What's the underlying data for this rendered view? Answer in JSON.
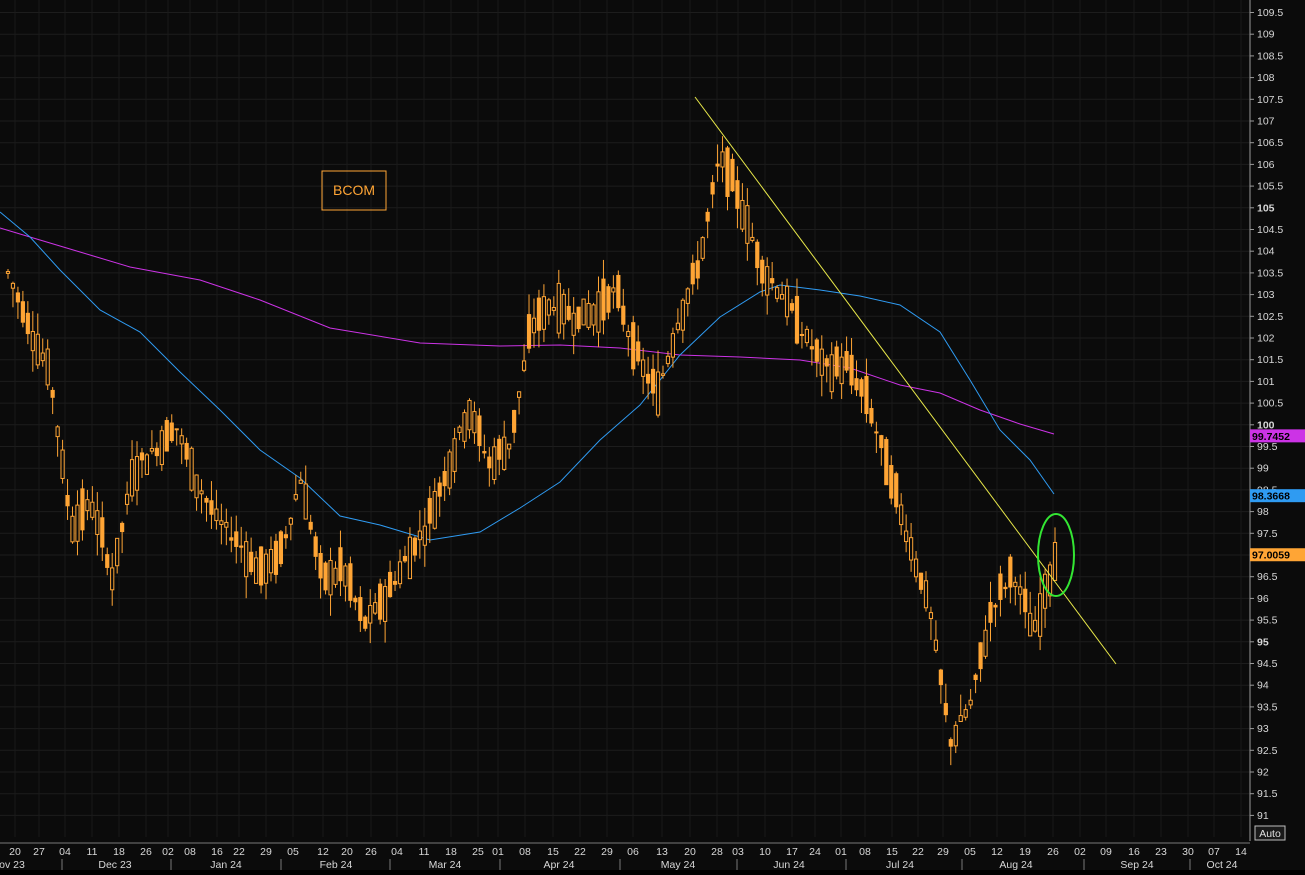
{
  "chart_data": {
    "type": "candlestick",
    "title": "BCOM",
    "ylim": [
      90.75,
      109.75
    ],
    "y_tick_labels": [
      "91",
      "91.5",
      "92",
      "92.5",
      "93",
      "93.5",
      "94",
      "94.5",
      "95",
      "95.5",
      "96",
      "96.5",
      "97",
      "97.5",
      "98",
      "98.5",
      "99",
      "99.5",
      "100",
      "100.5",
      "101",
      "101.5",
      "102",
      "102.5",
      "103",
      "103.5",
      "104",
      "104.5",
      "105",
      "105.5",
      "106",
      "106.5",
      "107",
      "107.5",
      "108",
      "108.5",
      "109",
      "109.5"
    ],
    "y_bold_ticks": [
      "95",
      "100",
      "105"
    ],
    "x_day_labels": [
      "20",
      "27",
      "04",
      "11",
      "18",
      "26",
      "02",
      "08",
      "16",
      "22",
      "29",
      "05",
      "12",
      "20",
      "26",
      "04",
      "11",
      "18",
      "25",
      "01",
      "08",
      "15",
      "22",
      "29",
      "06",
      "13",
      "20",
      "28",
      "03",
      "10",
      "17",
      "24",
      "01",
      "08",
      "15",
      "22",
      "29",
      "05",
      "12",
      "19",
      "26",
      "02",
      "09",
      "16",
      "23",
      "30",
      "07",
      "14"
    ],
    "x_month_labels": [
      "ov 23",
      "Dec 23",
      "Jan 24",
      "Feb 24",
      "Mar 24",
      "Apr 24",
      "May 24",
      "Jun 24",
      "Jul 24",
      "Aug 24",
      "Sep 24",
      "Oct 24"
    ],
    "auto_label": "Auto",
    "series": [
      {
        "name": "",
        "type": "candle",
        "values_close_approx": [
          103.5,
          102.3,
          101.2,
          97.7,
          98.2,
          96.5,
          99.0,
          99.4,
          100.0,
          98.7,
          97.8,
          97.3,
          96.6,
          97.0,
          98.8,
          96.4,
          96.7,
          95.4,
          96.0,
          96.9,
          97.7,
          99.0,
          100.4,
          99.1,
          99.6,
          102.3,
          102.8,
          102.5,
          102.6,
          103.1,
          101.6,
          100.7,
          102.4,
          103.7,
          106.2,
          105.1,
          103.6,
          103.0,
          102.1,
          101.3,
          101.4,
          100.6,
          99.0,
          97.4,
          95.8,
          92.7,
          93.6,
          95.8,
          96.6,
          95.2,
          97.0
        ]
      },
      {
        "name": "",
        "type": "line",
        "color": "#cc33e6",
        "label": "99.7452"
      },
      {
        "name": "",
        "type": "line",
        "color": "#2f9bf2",
        "label": "98.3668"
      },
      {
        "name": "",
        "type": "trendline",
        "color": "#e8e84a"
      }
    ],
    "last_price_label": "97.0059",
    "colors": {
      "candle": "#ffa535",
      "ma_long": "#cc33e6",
      "ma_short": "#2f9bf2",
      "trend": "#e8e84a",
      "highlight": "#33e633",
      "background": "#0b0b0b"
    },
    "annotations": [
      "green-ellipse-around-last-candle"
    ]
  }
}
